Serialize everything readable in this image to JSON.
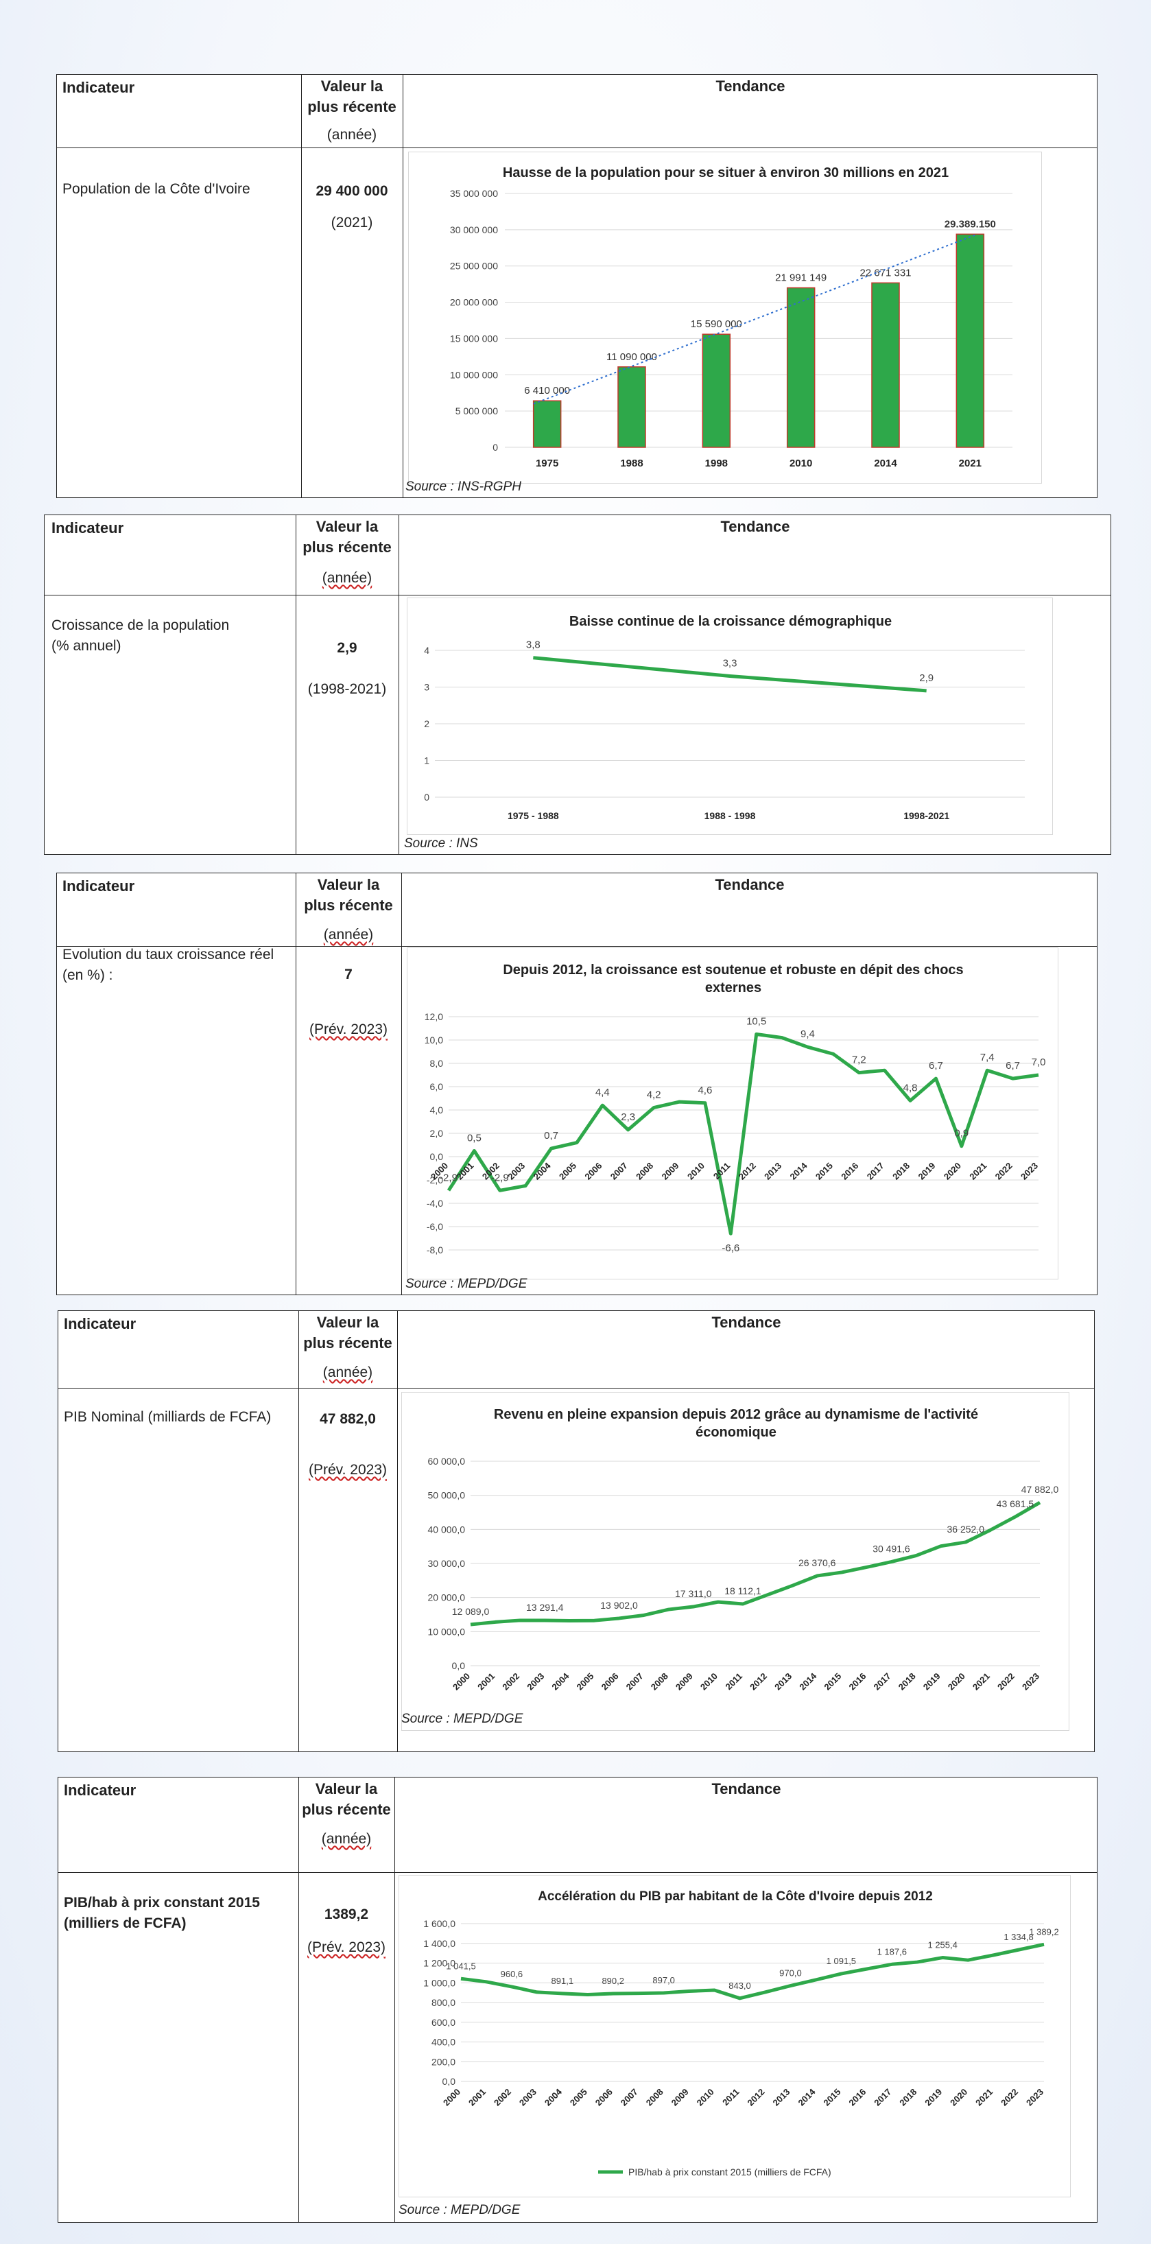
{
  "header": {
    "indicateur": "Indicateur",
    "valeur_line1": "Valeur la",
    "valeur_line2": "plus récente",
    "annee": "(année)",
    "tendance": "Tendance"
  },
  "sections": [
    {
      "indicator": "Population de la Côte d'Ivoire",
      "value": "29 400 000",
      "year": "(2021)",
      "source": "Source : INS-RGPH"
    },
    {
      "indicator_line1": "Croissance de la population",
      "indicator_line2": "(% annuel)",
      "value": "2,9",
      "year": "(1998-2021)",
      "source": "Source : INS"
    },
    {
      "indicator_line1": "Evolution du taux croissance réel",
      "indicator_line2": "(en %) :",
      "value": "7",
      "year": "(Prév. 2023)",
      "source": "Source : MEPD/DGE"
    },
    {
      "indicator": "PIB Nominal (milliards de FCFA)",
      "value": "47 882,0",
      "year": "(Prév. 2023)",
      "source": "Source : MEPD/DGE"
    },
    {
      "indicator_line1": "PIB/hab à prix constant 2015",
      "indicator_line2": "(milliers de FCFA)",
      "value": "1389,2",
      "year": "(Prév. 2023)",
      "source": "Source : MEPD/DGE"
    }
  ],
  "chart_data": [
    {
      "type": "bar",
      "title": "Hausse de la population pour se situer à environ 30 millions en 2021",
      "categories": [
        "1975",
        "1988",
        "1998",
        "2010",
        "2014",
        "2021"
      ],
      "values": [
        6410000,
        11090000,
        15590000,
        21991149,
        22671331,
        29389150
      ],
      "data_labels": [
        "6 410 000",
        "11 090 000",
        "15 590 000",
        "21 991 149",
        "22 671 331",
        "29.389.150"
      ],
      "yticks": [
        "0",
        "5 000 000",
        "10 000 000",
        "15 000 000",
        "20 000 000",
        "25 000 000",
        "30 000 000",
        "35 000 000"
      ],
      "ylim": [
        0,
        35000000
      ],
      "trendline": true,
      "grid": true,
      "colors": {
        "bar": "#2ea84a",
        "bar_edge": "#c0392b",
        "trend": "#2f6fcf"
      }
    },
    {
      "type": "line",
      "title": "Baisse continue  de la croissance démographique",
      "categories": [
        "1975 - 1988",
        "1988 - 1998",
        "1998-2021"
      ],
      "values": [
        3.8,
        3.3,
        2.9
      ],
      "data_labels": [
        "3,8",
        "3,3",
        "2,9"
      ],
      "yticks": [
        "0",
        "1",
        "2",
        "3",
        "4"
      ],
      "ylim": [
        0,
        4.3
      ],
      "grid": true,
      "colors": {
        "line": "#2ea84a"
      }
    },
    {
      "type": "line",
      "title_line1": "Depuis 2012, la croissance est soutenue et robuste en dépit des chocs",
      "title_line2": "externes",
      "categories": [
        "2000",
        "2001",
        "2002",
        "2003",
        "2004",
        "2005",
        "2006",
        "2007",
        "2008",
        "2009",
        "2010",
        "2011",
        "2012",
        "2013",
        "2014",
        "2015",
        "2016",
        "2017",
        "2018",
        "2019",
        "2020",
        "2021",
        "2022",
        "2023"
      ],
      "values": [
        -2.9,
        0.5,
        -2.9,
        -2.5,
        0.7,
        1.2,
        4.4,
        2.3,
        4.2,
        4.7,
        4.6,
        -6.6,
        10.5,
        10.2,
        9.4,
        8.8,
        7.2,
        7.4,
        4.8,
        6.7,
        0.9,
        7.4,
        6.7,
        7.0
      ],
      "data_labels": [
        {
          "i": 0,
          "text": "-2,9"
        },
        {
          "i": 1,
          "text": "0,5"
        },
        {
          "i": 2,
          "text": "-2,9"
        },
        {
          "i": 4,
          "text": "0,7"
        },
        {
          "i": 6,
          "text": "4,4"
        },
        {
          "i": 7,
          "text": "2,3"
        },
        {
          "i": 8,
          "text": "4,2"
        },
        {
          "i": 10,
          "text": "4,6"
        },
        {
          "i": 11,
          "text": "-6,6"
        },
        {
          "i": 12,
          "text": "10,5"
        },
        {
          "i": 14,
          "text": "9,4"
        },
        {
          "i": 16,
          "text": "7,2"
        },
        {
          "i": 18,
          "text": "4,8"
        },
        {
          "i": 19,
          "text": "6,7"
        },
        {
          "i": 20,
          "text": "0,9"
        },
        {
          "i": 21,
          "text": "7,4"
        },
        {
          "i": 22,
          "text": "6,7"
        },
        {
          "i": 23,
          "text": "7,0"
        }
      ],
      "yticks": [
        "-8,0",
        "-6,0",
        "-4,0",
        "-2,0",
        "0,0",
        "2,0",
        "4,0",
        "6,0",
        "8,0",
        "10,0",
        "12,0"
      ],
      "ylim": [
        -8,
        12
      ],
      "grid": true,
      "colors": {
        "line": "#2ea84a"
      }
    },
    {
      "type": "line",
      "title_line1": "Revenu en pleine expansion depuis 2012 grâce au dynamisme de l'activité",
      "title_line2": "économique",
      "categories": [
        "2000",
        "2001",
        "2002",
        "2003",
        "2004",
        "2005",
        "2006",
        "2007",
        "2008",
        "2009",
        "2010",
        "2011",
        "2012",
        "2013",
        "2014",
        "2015",
        "2016",
        "2017",
        "2018",
        "2019",
        "2020",
        "2021",
        "2022",
        "2023"
      ],
      "values": [
        12089.0,
        12800,
        13300,
        13291.4,
        13200,
        13250,
        13902.0,
        14800,
        16500,
        17311.0,
        18700,
        18112.1,
        20800,
        23500,
        26370.6,
        27400,
        28900,
        30491.6,
        32300,
        35100,
        36252.0,
        39800,
        43681.5,
        47882.0
      ],
      "data_labels": [
        {
          "i": 0,
          "text": "12 089,0"
        },
        {
          "i": 3,
          "text": "13 291,4"
        },
        {
          "i": 6,
          "text": "13 902,0"
        },
        {
          "i": 9,
          "text": "17 311,0"
        },
        {
          "i": 11,
          "text": "18 112,1"
        },
        {
          "i": 14,
          "text": "26 370,6"
        },
        {
          "i": 17,
          "text": "30 491,6"
        },
        {
          "i": 20,
          "text": "36 252,0"
        },
        {
          "i": 22,
          "text": "43 681,5"
        },
        {
          "i": 23,
          "text": "47 882,0"
        }
      ],
      "yticks": [
        "0,0",
        "10 000,0",
        "20 000,0",
        "30 000,0",
        "40 000,0",
        "50 000,0",
        "60 000,0"
      ],
      "ylim": [
        0,
        60000
      ],
      "grid": true,
      "colors": {
        "line": "#2ea84a"
      }
    },
    {
      "type": "line",
      "title": "Accélération du PIB par habitant de la Côte d'Ivoire depuis 2012",
      "categories": [
        "2000",
        "2001",
        "2002",
        "2003",
        "2004",
        "2005",
        "2006",
        "2007",
        "2008",
        "2009",
        "2010",
        "2011",
        "2012",
        "2013",
        "2014",
        "2015",
        "2016",
        "2017",
        "2018",
        "2019",
        "2020",
        "2021",
        "2022",
        "2023"
      ],
      "values": [
        1041.5,
        1010,
        960.6,
        905,
        891.1,
        880,
        890.2,
        893,
        897.0,
        915,
        925,
        843.0,
        905,
        970.0,
        1030,
        1091.5,
        1140,
        1187.6,
        1210,
        1255.4,
        1230,
        1280,
        1334.8,
        1389.2
      ],
      "data_labels": [
        {
          "i": 0,
          "text": "1 041,5"
        },
        {
          "i": 2,
          "text": "960,6"
        },
        {
          "i": 4,
          "text": "891,1"
        },
        {
          "i": 6,
          "text": "890,2"
        },
        {
          "i": 8,
          "text": "897,0"
        },
        {
          "i": 11,
          "text": "843,0"
        },
        {
          "i": 13,
          "text": "970,0"
        },
        {
          "i": 15,
          "text": "1 091,5"
        },
        {
          "i": 17,
          "text": "1 187,6"
        },
        {
          "i": 19,
          "text": "1 255,4"
        },
        {
          "i": 22,
          "text": "1 334,8"
        },
        {
          "i": 23,
          "text": "1 389,2"
        }
      ],
      "yticks": [
        "0,0",
        "200,0",
        "400,0",
        "600,0",
        "800,0",
        "1 000,0",
        "1 200,0",
        "1 400,0",
        "1 600,0"
      ],
      "ylim": [
        0,
        1600
      ],
      "legend": "PIB/hab à prix constant 2015 (milliers de FCFA)",
      "legend_position": "bottom",
      "grid": true,
      "colors": {
        "line": "#2ea84a"
      }
    }
  ]
}
